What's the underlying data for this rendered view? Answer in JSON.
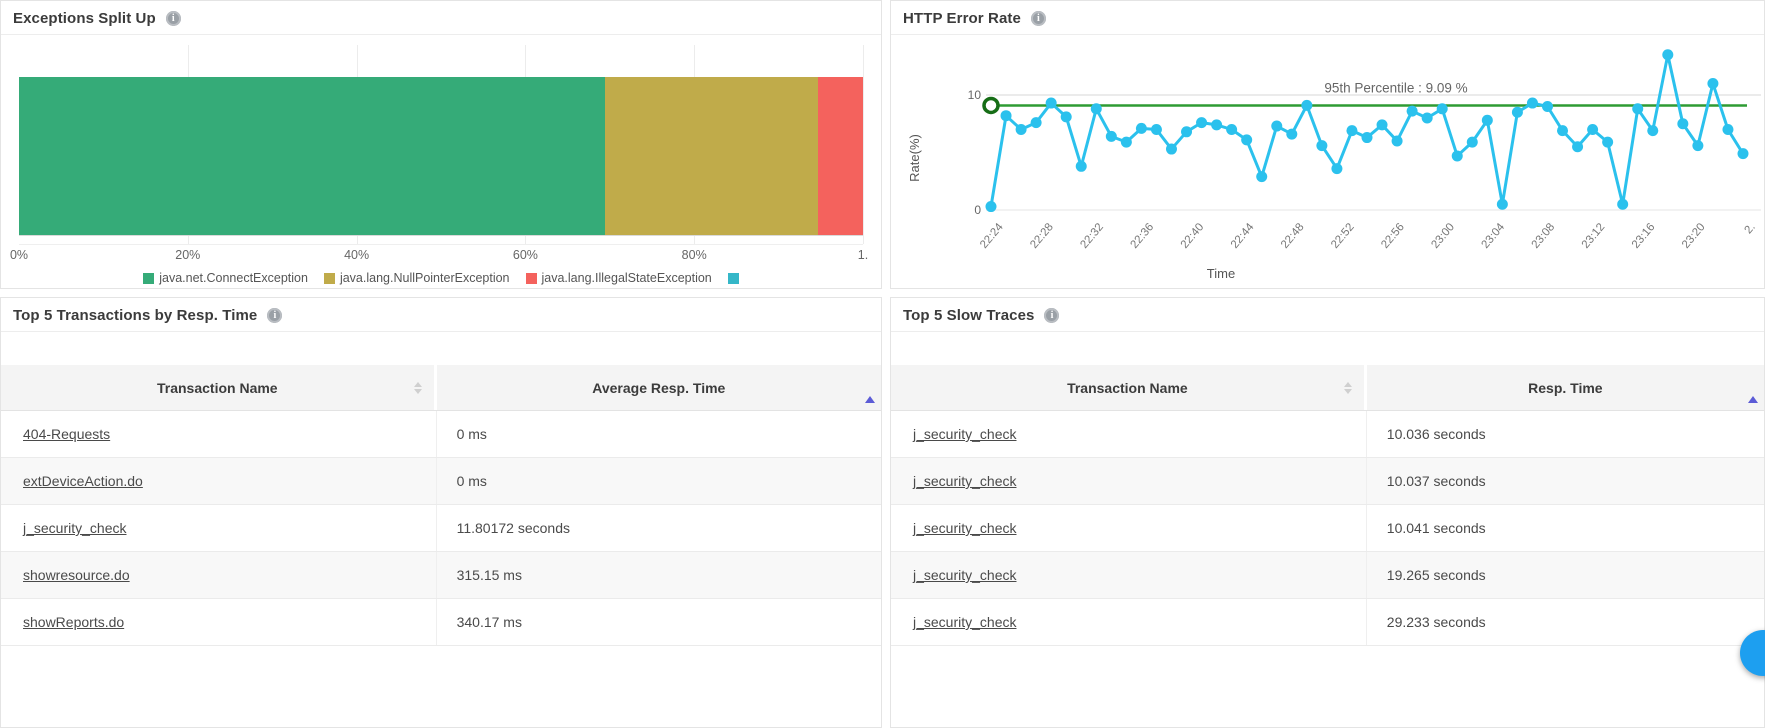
{
  "panels": {
    "exceptions": {
      "title": "Exceptions Split Up"
    },
    "http_error": {
      "title": "HTTP Error Rate"
    },
    "top_transactions": {
      "title": "Top 5 Transactions by Resp. Time",
      "table": {
        "columns": [
          "Transaction Name",
          "Average Resp. Time"
        ],
        "rows": [
          [
            "404-Requests",
            "0 ms"
          ],
          [
            "extDeviceAction.do",
            "0 ms"
          ],
          [
            "j_security_check",
            "11.80172 seconds"
          ],
          [
            "showresource.do",
            "315.15 ms"
          ],
          [
            "showReports.do",
            "340.17 ms"
          ]
        ]
      }
    },
    "slow_traces": {
      "title": "Top 5 Slow Traces",
      "table": {
        "columns": [
          "Transaction Name",
          "Resp. Time"
        ],
        "rows": [
          [
            "j_security_check",
            "10.036 seconds"
          ],
          [
            "j_security_check",
            "10.037 seconds"
          ],
          [
            "j_security_check",
            "10.041 seconds"
          ],
          [
            "j_security_check",
            "19.265 seconds"
          ],
          [
            "j_security_check",
            "29.233 seconds"
          ]
        ]
      }
    }
  },
  "chart_data": [
    {
      "type": "bar",
      "subtype": "stacked-horizontal-percent",
      "title": "Exceptions Split Up",
      "series": [
        {
          "name": "java.net.ConnectException",
          "value": 69.4,
          "color": "#35ab78"
        },
        {
          "name": "java.lang.NullPointerException",
          "value": 25.3,
          "color": "#c0ab4a"
        },
        {
          "name": "java.lang.IllegalStateException",
          "value": 5.3,
          "color": "#f4625d"
        },
        {
          "name": "",
          "value": 0,
          "color": "#35b7c8"
        }
      ],
      "xlim": [
        0,
        100
      ],
      "x_tick_values": [
        0,
        20,
        40,
        60,
        80,
        100
      ],
      "x_tick_labels": [
        "0%",
        "20%",
        "40%",
        "60%",
        "80%",
        "1."
      ],
      "legend_position": "bottom",
      "grid": true
    },
    {
      "type": "line",
      "title": "HTTP Error Rate",
      "xlabel": "Time",
      "ylabel": "Rate(%)",
      "yticks": [
        0,
        10
      ],
      "ylim": [
        0,
        14.5
      ],
      "line_color": "#2bc1ed",
      "percentile": {
        "label": "95th Percentile : 9.09 %",
        "value": 9.09,
        "line_color": "#2e9b33",
        "marker_color": "#166d16"
      },
      "x_tick_labels": [
        "22:24",
        "22:28",
        "22:32",
        "22:36",
        "22:40",
        "22:44",
        "22:48",
        "22:52",
        "22:56",
        "23:00",
        "23:04",
        "23:08",
        "23:12",
        "23:16",
        "23:20",
        "2."
      ],
      "values": [
        0.3,
        8.2,
        7.0,
        7.6,
        9.3,
        8.1,
        3.8,
        8.8,
        6.4,
        5.9,
        7.1,
        7.0,
        5.3,
        6.8,
        7.6,
        7.4,
        7.0,
        6.1,
        2.9,
        7.3,
        6.6,
        9.1,
        5.6,
        3.6,
        6.9,
        6.3,
        7.4,
        6.0,
        8.6,
        8.0,
        8.8,
        4.7,
        5.9,
        7.8,
        0.5,
        8.5,
        9.3,
        9.0,
        6.9,
        5.5,
        7.0,
        5.9,
        0.5,
        8.8,
        6.9,
        13.5,
        7.5,
        5.6,
        11.0,
        7.0,
        4.9
      ]
    }
  ],
  "colors": {
    "accent_sort": "#5b5bd6",
    "fab": "#1d9ff0",
    "panel_border": "#e4e4e4"
  }
}
